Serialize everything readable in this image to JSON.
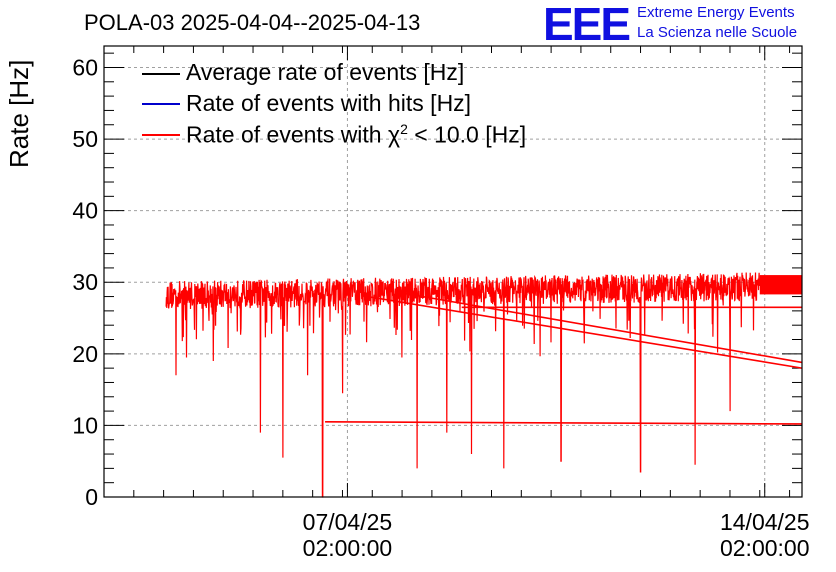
{
  "header": {
    "title": "POLA-03 2025-04-04--2025-04-13",
    "logo_text": "EEE",
    "logo_line1": "Extreme Energy Events",
    "logo_line2": "La Scienza nelle Scuole",
    "logo_color": "#1010e0"
  },
  "chart_data": {
    "type": "line",
    "title": "POLA-03 2025-04-04--2025-04-13",
    "ylabel": "Rate [Hz]",
    "xlabel": "",
    "ylim": [
      0,
      63
    ],
    "yticks": [
      0,
      10,
      20,
      30,
      40,
      50,
      60
    ],
    "xlim": [
      "2025-04-03 00:00",
      "2025-04-14 17:00"
    ],
    "xticks": [
      {
        "value": "2025-04-07 02:00",
        "label_date": "07/04/25",
        "label_time": "02:00:00"
      },
      {
        "value": "2025-04-14 02:00",
        "label_date": "14/04/25",
        "label_time": "02:00:00"
      }
    ],
    "grid": true,
    "legend_position": "top-left",
    "series": [
      {
        "name": "Average rate of events [Hz]",
        "color": "#000000",
        "values": []
      },
      {
        "name": "Rate of events with hits [Hz]",
        "color": "#0000cc",
        "values": []
      },
      {
        "name": "Rate of events with χ² < 10.0 [Hz]",
        "legend_prefix": "Rate of events with χ",
        "legend_sup": "2",
        "legend_suffix": " < 10.0 [Hz]",
        "color": "#ff0000",
        "typical_range": [
          26,
          31
        ],
        "x_start": "2025-04-04 01:00",
        "x_dense_end": "2025-04-14 00:00",
        "dips": [
          {
            "x": "2025-04-04 05:00",
            "y": 17
          },
          {
            "x": "2025-04-04 20:00",
            "y": 19
          },
          {
            "x": "2025-04-05 15:00",
            "y": 9
          },
          {
            "x": "2025-04-06 00:00",
            "y": 5.5
          },
          {
            "x": "2025-04-06 10:00",
            "y": 17
          },
          {
            "x": "2025-04-06 16:00",
            "y": 0
          },
          {
            "x": "2025-04-07 00:00",
            "y": 14.5
          },
          {
            "x": "2025-04-08 06:00",
            "y": 4
          },
          {
            "x": "2025-04-08 18:00",
            "y": 9
          },
          {
            "x": "2025-04-09 04:00",
            "y": 6
          },
          {
            "x": "2025-04-09 17:00",
            "y": 4
          },
          {
            "x": "2025-04-10 16:00",
            "y": 5
          },
          {
            "x": "2025-04-12 00:00",
            "y": 3.5
          },
          {
            "x": "2025-04-12 22:00",
            "y": 4.5
          },
          {
            "x": "2025-04-13 12:00",
            "y": 12
          }
        ],
        "connector_lines": [
          {
            "from": [
              "2025-04-06 17:00",
              10.5
            ],
            "to": [
              "2025-04-14 17:00",
              10.2
            ]
          },
          {
            "from": [
              "2025-04-07 10:00",
              28
            ],
            "to": [
              "2025-04-14 17:00",
              18
            ]
          },
          {
            "from": [
              "2025-04-08 00:00",
              28.5
            ],
            "to": [
              "2025-04-14 17:00",
              18.8
            ]
          },
          {
            "from": [
              "2025-04-09 00:00",
              26.5
            ],
            "to": [
              "2025-04-14 17:00",
              26.5
            ]
          }
        ]
      }
    ]
  }
}
